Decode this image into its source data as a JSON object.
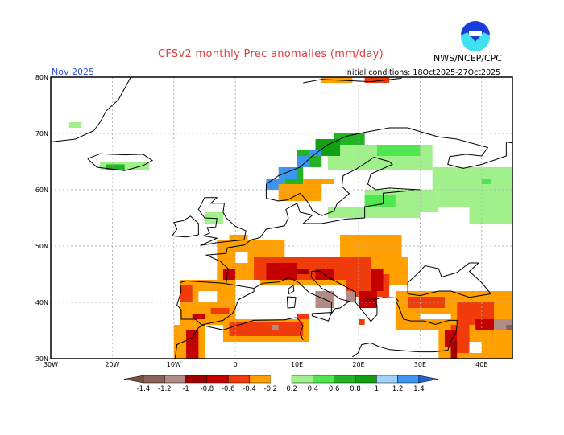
{
  "header": {
    "title": "CFSv2 monthly Prec anomalies (mm/day)",
    "agency": "NWS/NCEP/CPC",
    "logo_text": "NOAA",
    "period": "Nov 2025",
    "initial_conditions": "Initial conditions: 18Oct2025-27Oct2025"
  },
  "map": {
    "lon_range": [
      -30,
      45
    ],
    "lat_range": [
      30,
      80
    ],
    "lon_labels": [
      {
        "lon": -30,
        "label": "30W"
      },
      {
        "lon": -20,
        "label": "20W"
      },
      {
        "lon": -10,
        "label": "10W"
      },
      {
        "lon": 0,
        "label": "0"
      },
      {
        "lon": 10,
        "label": "10E"
      },
      {
        "lon": 20,
        "label": "20E"
      },
      {
        "lon": 30,
        "label": "30E"
      },
      {
        "lon": 40,
        "label": "40E"
      }
    ],
    "lat_labels": [
      {
        "lat": 80,
        "label": "80N"
      },
      {
        "lat": 70,
        "label": "70N"
      },
      {
        "lat": 60,
        "label": "60N"
      },
      {
        "lat": 50,
        "label": "50N"
      },
      {
        "lat": 40,
        "label": "40N"
      },
      {
        "lat": 30,
        "label": "30N"
      }
    ],
    "grid": true,
    "anomaly_cells": [
      [
        -3,
        44,
        8,
        51,
        6
      ],
      [
        -1,
        51,
        2,
        52,
        6
      ],
      [
        0,
        47,
        4,
        49,
        6
      ],
      [
        17,
        46,
        27,
        52,
        6
      ],
      [
        4,
        43,
        28,
        48,
        6
      ],
      [
        -9,
        36,
        0,
        44,
        6
      ],
      [
        -2,
        33,
        12,
        37,
        6
      ],
      [
        -10,
        30,
        -5,
        36,
        6
      ],
      [
        26,
        35,
        45,
        42,
        6
      ],
      [
        33,
        30,
        45,
        36,
        6
      ],
      [
        0,
        47,
        2,
        49,
        7
      ],
      [
        -6,
        40,
        -3,
        42,
        7
      ],
      [
        30,
        37,
        35,
        38,
        7
      ],
      [
        36,
        31,
        40,
        33,
        7
      ],
      [
        3,
        44,
        22,
        48,
        5
      ],
      [
        18,
        41,
        25,
        45,
        5
      ],
      [
        -1,
        34,
        11,
        36.5,
        5
      ],
      [
        -9,
        40,
        -7,
        43,
        5
      ],
      [
        28,
        39,
        34,
        41,
        5
      ],
      [
        36,
        36,
        42,
        40,
        5
      ],
      [
        35,
        31,
        38,
        36,
        5
      ],
      [
        10,
        37,
        12,
        38,
        5
      ],
      [
        20,
        36,
        21,
        37,
        5
      ],
      [
        -4,
        38,
        -1,
        39,
        5
      ],
      [
        5,
        44,
        10,
        47,
        4
      ],
      [
        13,
        44,
        16,
        46,
        4
      ],
      [
        22,
        42,
        24,
        46,
        4
      ],
      [
        -8,
        30,
        -6,
        35,
        4
      ],
      [
        20,
        39,
        23,
        42,
        4
      ],
      [
        34,
        32,
        36,
        35,
        4
      ],
      [
        -7,
        37,
        -5,
        38,
        4
      ],
      [
        39,
        35,
        42,
        37,
        4
      ],
      [
        -2,
        44,
        0,
        46,
        4
      ],
      [
        21,
        40,
        23,
        41,
        3
      ],
      [
        35,
        30,
        36,
        33,
        3
      ],
      [
        10,
        45,
        12,
        46,
        3
      ],
      [
        13,
        39,
        16,
        42,
        2
      ],
      [
        18,
        40,
        19.5,
        42,
        2
      ],
      [
        42,
        35,
        45,
        37,
        2
      ],
      [
        6,
        35,
        7,
        36,
        2
      ],
      [
        44,
        35,
        45,
        36,
        1
      ],
      [
        15,
        63.5,
        32,
        68,
        8
      ],
      [
        32,
        60,
        45,
        64,
        8
      ],
      [
        33,
        57,
        45,
        60,
        8
      ],
      [
        38,
        54,
        45,
        57,
        8
      ],
      [
        21,
        56,
        33,
        60,
        8
      ],
      [
        15,
        55,
        30,
        57,
        8
      ],
      [
        23,
        66,
        30,
        68,
        9
      ],
      [
        21,
        57,
        26,
        59,
        9
      ],
      [
        40,
        61,
        41.5,
        62,
        9
      ],
      [
        10,
        64,
        14,
        67,
        10
      ],
      [
        16,
        68,
        21,
        70,
        10
      ],
      [
        8,
        61,
        11,
        64,
        10
      ],
      [
        13,
        66,
        17,
        69,
        11
      ],
      [
        6,
        60,
        9,
        61,
        12
      ],
      [
        5,
        60,
        8,
        62,
        13
      ],
      [
        7,
        62,
        10,
        64,
        13
      ],
      [
        10,
        64,
        12,
        66,
        13
      ],
      [
        12,
        66,
        14,
        67,
        13
      ],
      [
        7,
        58,
        14,
        61,
        6
      ],
      [
        11,
        61,
        16,
        62,
        6
      ],
      [
        -22,
        63.5,
        -14,
        65,
        8
      ],
      [
        -21,
        63.5,
        -18,
        64.5,
        10
      ],
      [
        -27,
        71,
        -25,
        72,
        8
      ],
      [
        -5,
        54,
        -2,
        56,
        8
      ],
      [
        14,
        79,
        19,
        80,
        6
      ],
      [
        21,
        79,
        25,
        80,
        5
      ]
    ]
  },
  "colorbar": {
    "bins": [
      "<-1.4",
      "-1.4 to -1.2",
      "-1.2 to -1",
      "-1 to -0.8",
      "-0.8 to -0.6",
      "-0.6 to -0.4",
      "-0.4 to -0.2",
      "-0.2 to 0.2",
      "0.2 to 0.4",
      "0.4 to 0.6",
      "0.6 to 0.8",
      "0.8 to 1",
      "1 to 1.2",
      "1.2 to 1.4",
      ">1.4"
    ],
    "colors": [
      "#7b5044",
      "#8c6058",
      "#b08c84",
      "#a00000",
      "#c40000",
      "#f03c0a",
      "#ffa000",
      "#ffffff",
      "#a0f08c",
      "#50e650",
      "#22b422",
      "#12a012",
      "#a0d2fa",
      "#3c96f0",
      "#2064d2"
    ],
    "tick_labels": [
      "-1.4",
      "-1.2",
      "-1",
      "-0.8",
      "-0.6",
      "-0.4",
      "-0.2",
      "0.2",
      "0.4",
      "0.6",
      "0.8",
      "1",
      "1.2",
      "1.4"
    ]
  }
}
